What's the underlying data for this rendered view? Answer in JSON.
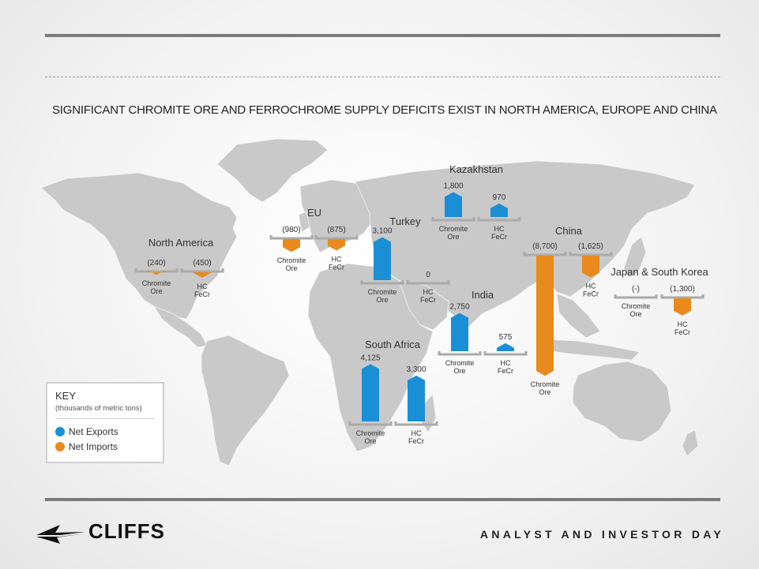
{
  "headline": "SIGNIFICANT CHROMITE ORE AND FERROCHROME SUPPLY DEFICITS EXIST IN NORTH AMERICA, EUROPE AND CHINA",
  "footer": {
    "brand": "CLIFFS",
    "event": "ANALYST AND INVESTOR DAY"
  },
  "key": {
    "title": "KEY",
    "subtitle": "(thousands of metric tons)",
    "items": [
      {
        "label": "Net Exports",
        "color": "#1a8fd6"
      },
      {
        "label": "Net Imports",
        "color": "#e88a1d"
      }
    ]
  },
  "colors": {
    "exports": "#1a8fd6",
    "imports": "#e88a1d",
    "land": "#c9c9c9",
    "bracket": "#aaaaaa"
  },
  "chart_data": {
    "type": "bar",
    "title": "SIGNIFICANT CHROMITE ORE AND FERROCHROME SUPPLY DEFICITS EXIST IN NORTH AMERICA, EUROPE AND CHINA",
    "unit": "thousands of metric tons",
    "regions": [
      {
        "name": "North America",
        "bars": [
          {
            "product": "Chromite Ore",
            "value": -240,
            "label": "(240)"
          },
          {
            "product": "HC FeCr",
            "value": -450,
            "label": "(450)"
          }
        ]
      },
      {
        "name": "EU",
        "bars": [
          {
            "product": "Chromite Ore",
            "value": -980,
            "label": "(980)"
          },
          {
            "product": "HC FeCr",
            "value": -875,
            "label": "(875)"
          }
        ]
      },
      {
        "name": "Turkey",
        "bars": [
          {
            "product": "Chromite Ore",
            "value": 3100,
            "label": "3,100"
          },
          {
            "product": "HC FeCr",
            "value": 0,
            "label": "0"
          }
        ]
      },
      {
        "name": "Kazakhstan",
        "bars": [
          {
            "product": "Chromite Ore",
            "value": 1800,
            "label": "1,800"
          },
          {
            "product": "HC FeCr",
            "value": 970,
            "label": "970"
          }
        ]
      },
      {
        "name": "India",
        "bars": [
          {
            "product": "Chromite Ore",
            "value": 2750,
            "label": "2,750"
          },
          {
            "product": "HC FeCr",
            "value": 575,
            "label": "575"
          }
        ]
      },
      {
        "name": "China",
        "bars": [
          {
            "product": "Chromite Ore",
            "value": -8700,
            "label": "(8,700)"
          },
          {
            "product": "HC FeCr",
            "value": -1625,
            "label": "(1,625)"
          }
        ]
      },
      {
        "name": "Japan & South Korea",
        "bars": [
          {
            "product": "Chromite Ore",
            "value": 0,
            "label": "(-)"
          },
          {
            "product": "HC FeCr",
            "value": -1300,
            "label": "(1,300)"
          }
        ]
      },
      {
        "name": "South Africa",
        "bars": [
          {
            "product": "Chromite Ore",
            "value": 4125,
            "label": "4,125"
          },
          {
            "product": "HC FeCr",
            "value": 3300,
            "label": "3,300"
          }
        ]
      }
    ]
  }
}
